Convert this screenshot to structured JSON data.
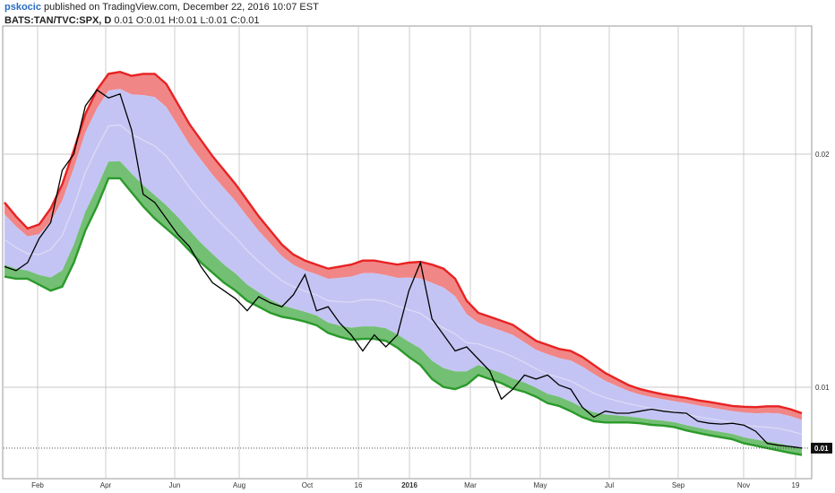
{
  "header": {
    "author": "pskocic",
    "published_text": " published on TradingView.com, December 22, 2016 10:07 EST",
    "symbol": "BATS:TAN/TVC:SPX, D",
    "ohlc": " 0.01 O:0.01 H:0.01 L:0.01 C:0.01"
  },
  "chart_data": {
    "type": "area",
    "x_tick_labels": [
      "Feb",
      "Apr",
      "Jun",
      "Aug",
      "Oct",
      "16",
      "2016",
      "Mar",
      "May",
      "Jul",
      "Sep",
      "Nov",
      "19"
    ],
    "y_tick_labels": [
      "0.02",
      "0.01",
      "0.01"
    ],
    "last_price": "0.01",
    "colors": {
      "upper_band": "#f08080",
      "middle_band": "#c4c4f4",
      "lower_band": "#6cbc6c",
      "upper_line": "#e82222",
      "lower_line": "#2a9a2a",
      "price_line": "#000000",
      "grid": "#b8b8b8"
    },
    "grid": true,
    "x_range_days": [
      0,
      690
    ],
    "y_range_normalized": [
      0,
      1
    ],
    "series": [
      {
        "role": "upper-band",
        "x": [
          0,
          10,
          20,
          30,
          40,
          50,
          60,
          70,
          80,
          90,
          100,
          110,
          120,
          130,
          140,
          150,
          160,
          170,
          180,
          190,
          200,
          210,
          220,
          230,
          240,
          250,
          260,
          270,
          280,
          290,
          300,
          310,
          320,
          330,
          340,
          350,
          360,
          370,
          380,
          390,
          400,
          410,
          420,
          430,
          440,
          450,
          460,
          470,
          480,
          490,
          500,
          510,
          520,
          530,
          540,
          550,
          560,
          570,
          580,
          590,
          600,
          610,
          620,
          630,
          640,
          650,
          660,
          670,
          680,
          690
        ],
        "y": [
          0.63,
          0.595,
          0.565,
          0.575,
          0.615,
          0.675,
          0.76,
          0.85,
          0.91,
          0.95,
          0.955,
          0.945,
          0.95,
          0.95,
          0.925,
          0.875,
          0.825,
          0.785,
          0.745,
          0.71,
          0.675,
          0.635,
          0.595,
          0.56,
          0.525,
          0.5,
          0.485,
          0.475,
          0.465,
          0.47,
          0.475,
          0.485,
          0.485,
          0.48,
          0.475,
          0.48,
          0.482,
          0.475,
          0.465,
          0.44,
          0.385,
          0.355,
          0.345,
          0.335,
          0.325,
          0.305,
          0.285,
          0.275,
          0.265,
          0.26,
          0.245,
          0.225,
          0.205,
          0.19,
          0.175,
          0.165,
          0.158,
          0.152,
          0.147,
          0.143,
          0.137,
          0.133,
          0.128,
          0.123,
          0.121,
          0.12,
          0.122,
          0.122,
          0.115,
          0.105
        ]
      },
      {
        "role": "lower-band",
        "x": [
          0,
          10,
          20,
          30,
          40,
          50,
          60,
          70,
          80,
          90,
          100,
          110,
          120,
          130,
          140,
          150,
          160,
          170,
          180,
          190,
          200,
          210,
          220,
          230,
          240,
          250,
          260,
          270,
          280,
          290,
          300,
          310,
          320,
          330,
          340,
          350,
          360,
          370,
          380,
          390,
          400,
          410,
          420,
          430,
          440,
          450,
          460,
          470,
          480,
          490,
          500,
          510,
          520,
          530,
          540,
          550,
          560,
          570,
          580,
          590,
          600,
          610,
          620,
          630,
          640,
          650,
          660,
          670,
          680,
          690
        ],
        "y": [
          0.445,
          0.44,
          0.44,
          0.425,
          0.41,
          0.42,
          0.48,
          0.56,
          0.62,
          0.69,
          0.69,
          0.655,
          0.62,
          0.59,
          0.565,
          0.54,
          0.51,
          0.48,
          0.455,
          0.43,
          0.41,
          0.385,
          0.37,
          0.355,
          0.345,
          0.34,
          0.333,
          0.324,
          0.305,
          0.295,
          0.288,
          0.29,
          0.29,
          0.285,
          0.268,
          0.245,
          0.225,
          0.19,
          0.17,
          0.165,
          0.176,
          0.2,
          0.19,
          0.18,
          0.166,
          0.158,
          0.146,
          0.13,
          0.123,
          0.11,
          0.095,
          0.085,
          0.082,
          0.082,
          0.082,
          0.08,
          0.076,
          0.074,
          0.07,
          0.062,
          0.056,
          0.05,
          0.045,
          0.04,
          0.03,
          0.024,
          0.018,
          0.012,
          0.006,
          0.001
        ]
      },
      {
        "role": "price",
        "x": [
          0,
          10,
          20,
          30,
          40,
          50,
          60,
          70,
          80,
          90,
          100,
          110,
          120,
          130,
          140,
          150,
          160,
          170,
          180,
          190,
          200,
          210,
          220,
          230,
          240,
          250,
          260,
          270,
          280,
          290,
          300,
          310,
          320,
          330,
          340,
          350,
          360,
          370,
          380,
          390,
          400,
          410,
          420,
          430,
          440,
          450,
          460,
          470,
          480,
          490,
          500,
          510,
          520,
          530,
          540,
          550,
          560,
          570,
          580,
          590,
          600,
          610,
          620,
          630,
          640,
          650,
          660,
          670,
          680,
          690
        ],
        "y": [
          0.47,
          0.46,
          0.48,
          0.54,
          0.58,
          0.71,
          0.75,
          0.87,
          0.91,
          0.89,
          0.9,
          0.81,
          0.65,
          0.63,
          0.59,
          0.55,
          0.52,
          0.47,
          0.43,
          0.41,
          0.39,
          0.36,
          0.395,
          0.38,
          0.37,
          0.4,
          0.45,
          0.36,
          0.37,
          0.33,
          0.3,
          0.26,
          0.3,
          0.27,
          0.3,
          0.41,
          0.48,
          0.34,
          0.3,
          0.26,
          0.27,
          0.24,
          0.21,
          0.14,
          0.165,
          0.2,
          0.19,
          0.2,
          0.175,
          0.165,
          0.12,
          0.095,
          0.11,
          0.105,
          0.105,
          0.11,
          0.115,
          0.11,
          0.107,
          0.105,
          0.085,
          0.08,
          0.078,
          0.08,
          0.075,
          0.06,
          0.03,
          0.025,
          0.022,
          0.018
        ]
      }
    ]
  }
}
